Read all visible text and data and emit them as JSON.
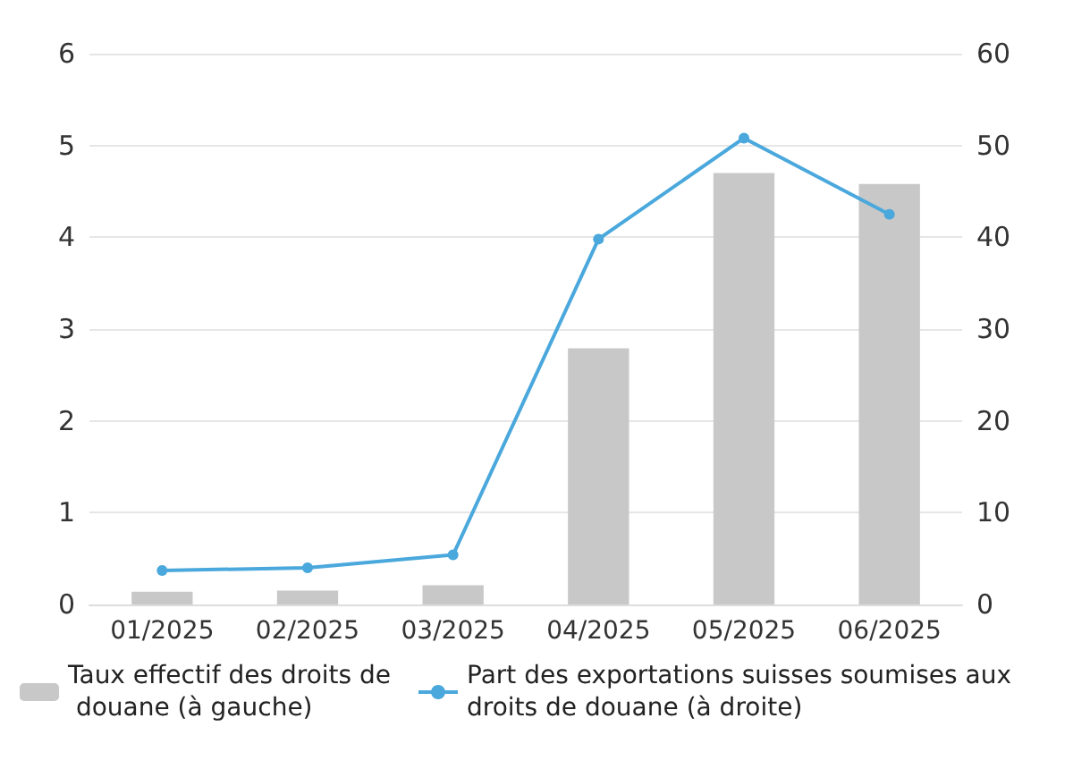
{
  "chart_data": {
    "type": "bar",
    "categories": [
      "01/2025",
      "02/2025",
      "03/2025",
      "04/2025",
      "05/2025",
      "06/2025"
    ],
    "series": [
      {
        "name": "Taux effectif des droits de douane (à gauche)",
        "color": "#c8c8c8",
        "values": [
          0.14,
          0.15,
          0.21,
          2.79,
          4.7,
          4.58
        ]
      },
      {
        "name": "Part des exportations suisses soumises aux droits de douane (à droite)",
        "color": "#4aa8dc",
        "type": "line",
        "axis": "y2",
        "marker": "circle",
        "values": [
          3.7,
          4.0,
          5.4,
          39.8,
          50.8,
          42.5
        ]
      }
    ],
    "ylim": [
      0,
      6
    ],
    "yticks": [
      0,
      1,
      2,
      3,
      4,
      5,
      6
    ],
    "y2lim": [
      0,
      60
    ],
    "y2ticks": [
      0,
      10,
      20,
      30,
      40,
      50,
      60
    ],
    "grid": "y",
    "legend": "bottom"
  }
}
